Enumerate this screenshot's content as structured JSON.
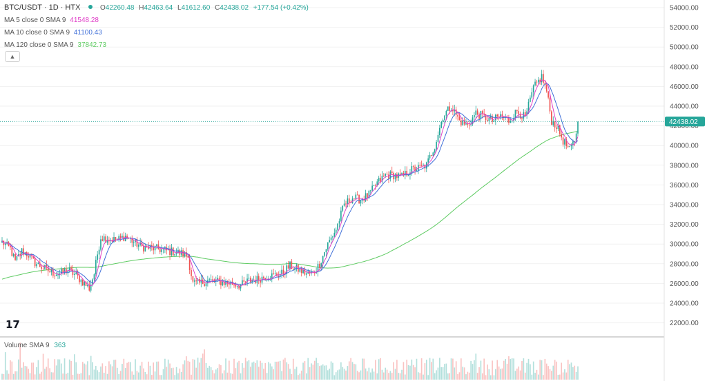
{
  "header": {
    "symbol": "BTC/USDT · 1D · HTX",
    "status_dot_color": "#26a69a",
    "ohlc": {
      "open_label": "O",
      "open": "42260.48",
      "high_label": "H",
      "high": "42463.64",
      "low_label": "L",
      "low": "41612.60",
      "close_label": "C",
      "close": "42438.02",
      "change": "+177.54 (+0.42%)"
    },
    "ohlc_color": "#26a69a"
  },
  "indicators": [
    {
      "label": "MA 5 close 0 SMA 9",
      "value": "41548.28",
      "color": "#e040c8"
    },
    {
      "label": "MA 10 close 0 SMA 9",
      "value": "41100.43",
      "color": "#3f6fd8"
    },
    {
      "label": "MA 120 close 0 SMA 9",
      "value": "37842.73",
      "color": "#5ecb62"
    }
  ],
  "collapse_icon": "chevron-up-icon",
  "logo_text": "17",
  "volume_legend": {
    "label": "Volume SMA 9",
    "value": "363",
    "color": "#26a69a"
  },
  "price_axis": {
    "ticks": [
      "54000.00",
      "52000.00",
      "50000.00",
      "48000.00",
      "46000.00",
      "44000.00",
      "42000.00",
      "40000.00",
      "38000.00",
      "36000.00",
      "34000.00",
      "32000.00",
      "30000.00",
      "28000.00",
      "26000.00",
      "24000.00",
      "22000.00"
    ],
    "last_price": "42438.02",
    "last_price_color": "#26a69a"
  },
  "chart_data": {
    "type": "candlestick",
    "ylim": [
      22000,
      55200
    ],
    "up_color": "#26a69a",
    "down_color": "#ef5350",
    "key_closes": [
      [
        0,
        30200
      ],
      [
        5,
        29500
      ],
      [
        8,
        28200
      ],
      [
        12,
        29300
      ],
      [
        16,
        28900
      ],
      [
        20,
        28100
      ],
      [
        25,
        27600
      ],
      [
        30,
        27100
      ],
      [
        35,
        27000
      ],
      [
        40,
        27400
      ],
      [
        45,
        26800
      ],
      [
        50,
        26000
      ],
      [
        53,
        25500
      ],
      [
        56,
        27000
      ],
      [
        58,
        29000
      ],
      [
        60,
        30700
      ],
      [
        65,
        30500
      ],
      [
        70,
        30400
      ],
      [
        75,
        30800
      ],
      [
        80,
        30200
      ],
      [
        85,
        29700
      ],
      [
        90,
        29600
      ],
      [
        95,
        29500
      ],
      [
        100,
        29300
      ],
      [
        105,
        29200
      ],
      [
        110,
        29000
      ],
      [
        113,
        28700
      ],
      [
        116,
        26000
      ],
      [
        120,
        26000
      ],
      [
        125,
        26300
      ],
      [
        130,
        26200
      ],
      [
        135,
        26100
      ],
      [
        140,
        26000
      ],
      [
        145,
        25800
      ],
      [
        150,
        26300
      ],
      [
        155,
        26400
      ],
      [
        160,
        26700
      ],
      [
        165,
        26800
      ],
      [
        170,
        27000
      ],
      [
        175,
        27800
      ],
      [
        180,
        27400
      ],
      [
        185,
        27000
      ],
      [
        189,
        27000
      ],
      [
        193,
        28000
      ],
      [
        198,
        30000
      ],
      [
        203,
        31500
      ],
      [
        208,
        34000
      ],
      [
        213,
        34700
      ],
      [
        218,
        34500
      ],
      [
        223,
        35000
      ],
      [
        228,
        36200
      ],
      [
        233,
        37000
      ],
      [
        238,
        37000
      ],
      [
        243,
        36800
      ],
      [
        248,
        37500
      ],
      [
        253,
        37700
      ],
      [
        258,
        38000
      ],
      [
        263,
        40000
      ],
      [
        268,
        43000
      ],
      [
        273,
        44000
      ],
      [
        278,
        42500
      ],
      [
        283,
        42000
      ],
      [
        288,
        43300
      ],
      [
        293,
        42900
      ],
      [
        298,
        42500
      ],
      [
        303,
        43000
      ],
      [
        308,
        42500
      ],
      [
        313,
        43500
      ],
      [
        318,
        42800
      ],
      [
        323,
        45800
      ],
      [
        328,
        47000
      ],
      [
        331,
        45500
      ],
      [
        334,
        42500
      ],
      [
        337,
        42000
      ],
      [
        341,
        40500
      ],
      [
        345,
        39500
      ],
      [
        348,
        40500
      ],
      [
        350,
        42438
      ]
    ],
    "volume_max": 9
  }
}
